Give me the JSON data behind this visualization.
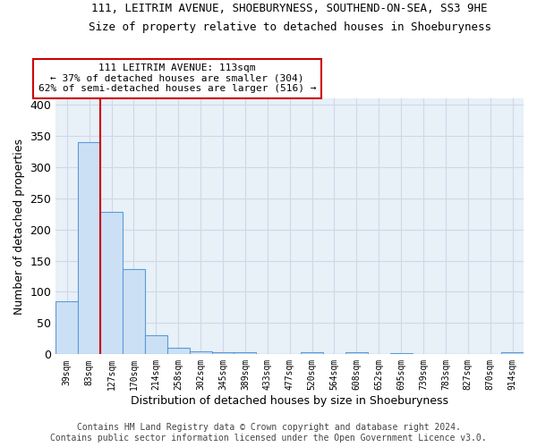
{
  "title1": "111, LEITRIM AVENUE, SHOEBURYNESS, SOUTHEND-ON-SEA, SS3 9HE",
  "title2": "Size of property relative to detached houses in Shoeburyness",
  "xlabel": "Distribution of detached houses by size in Shoeburyness",
  "ylabel": "Number of detached properties",
  "categories": [
    "39sqm",
    "83sqm",
    "127sqm",
    "170sqm",
    "214sqm",
    "258sqm",
    "302sqm",
    "345sqm",
    "389sqm",
    "433sqm",
    "477sqm",
    "520sqm",
    "564sqm",
    "608sqm",
    "652sqm",
    "695sqm",
    "739sqm",
    "783sqm",
    "827sqm",
    "870sqm",
    "914sqm"
  ],
  "values": [
    85,
    340,
    228,
    137,
    30,
    10,
    5,
    4,
    4,
    0,
    0,
    3,
    0,
    3,
    0,
    2,
    0,
    0,
    0,
    0,
    3
  ],
  "bar_color": "#cce0f5",
  "bar_edge_color": "#5b9bd5",
  "annotation_line1": "111 LEITRIM AVENUE: 113sqm",
  "annotation_line2": "← 37% of detached houses are smaller (304)",
  "annotation_line3": "62% of semi-detached houses are larger (516) →",
  "annotation_box_color": "#ffffff",
  "annotation_box_edge_color": "#cc0000",
  "vline_color": "#cc0000",
  "ylim": [
    0,
    410
  ],
  "yticks": [
    0,
    50,
    100,
    150,
    200,
    250,
    300,
    350,
    400
  ],
  "grid_color": "#d0d8e8",
  "background_color": "#e8f0f8",
  "footer_text": "Contains HM Land Registry data © Crown copyright and database right 2024.\nContains public sector information licensed under the Open Government Licence v3.0.",
  "title1_fontsize": 9,
  "title2_fontsize": 9,
  "xlabel_fontsize": 9,
  "ylabel_fontsize": 9,
  "annotation_fontsize": 8,
  "footer_fontsize": 7
}
